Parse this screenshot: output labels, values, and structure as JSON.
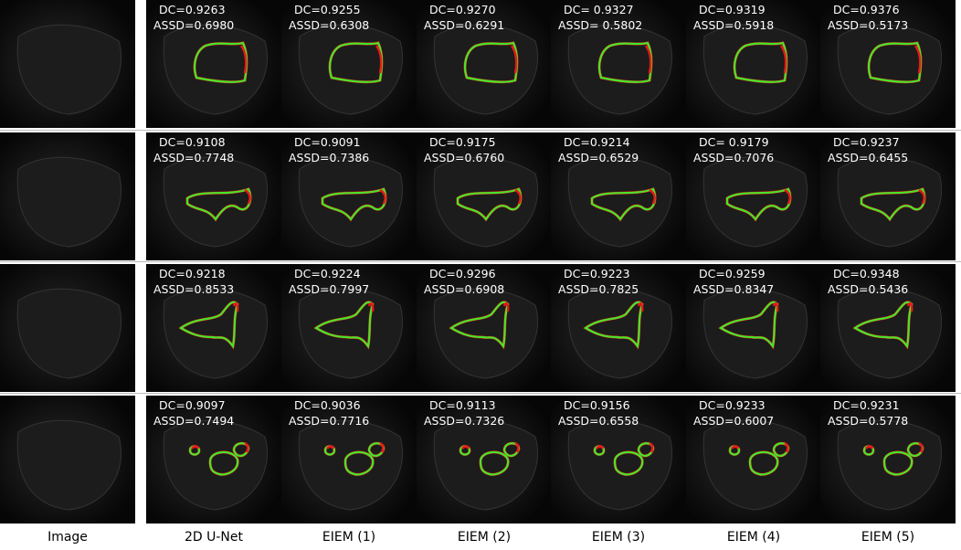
{
  "columns": [
    "Image",
    "2D U-Net",
    "EIEM (1)",
    "EIEM (2)",
    "EIEM (3)",
    "EIEM (4)",
    "EIEM (5)"
  ],
  "rows": [
    {
      "cells": [
        {
          "dc": "DC=0.9263",
          "assd": "ASSD=0.6980"
        },
        {
          "dc": "DC=0.9255",
          "assd": "ASSD=0.6308"
        },
        {
          "dc": "DC=0.9270",
          "assd": "ASSD=0.6291"
        },
        {
          "dc": "DC= 0.9327",
          "assd": "ASSD= 0.5802"
        },
        {
          "dc": "DC=0.9319",
          "assd": "ASSD=0.5918"
        },
        {
          "dc": "DC=0.9376",
          "assd": "ASSD=0.5173"
        }
      ]
    },
    {
      "cells": [
        {
          "dc": "DC=0.9108",
          "assd": "ASSD=0.7748"
        },
        {
          "dc": "DC=0.9091",
          "assd": "ASSD=0.7386"
        },
        {
          "dc": "DC=0.9175",
          "assd": "ASSD=0.6760"
        },
        {
          "dc": "DC=0.9214",
          "assd": "ASSD=0.6529"
        },
        {
          "dc": "DC= 0.9179",
          "assd": "ASSD=0.7076"
        },
        {
          "dc": "DC=0.9237",
          "assd": "ASSD=0.6455"
        }
      ]
    },
    {
      "cells": [
        {
          "dc": "DC=0.9218",
          "assd": "ASSD=0.8533"
        },
        {
          "dc": "DC=0.9224",
          "assd": "ASSD=0.7997"
        },
        {
          "dc": "DC=0.9296",
          "assd": "ASSD=0.6908"
        },
        {
          "dc": "DC=0.9223",
          "assd": "ASSD=0.7825"
        },
        {
          "dc": "DC=0.9259",
          "assd": "ASSD=0.8347"
        },
        {
          "dc": "DC=0.9348",
          "assd": "ASSD=0.5436"
        }
      ]
    },
    {
      "cells": [
        {
          "dc": "DC=0.9097",
          "assd": "ASSD=0.7494"
        },
        {
          "dc": "DC=0.9036",
          "assd": "ASSD=0.7716"
        },
        {
          "dc": "DC=0.9113",
          "assd": "ASSD=0.7326"
        },
        {
          "dc": "DC=0.9156",
          "assd": "ASSD=0.6558"
        },
        {
          "dc": "DC=0.9233",
          "assd": "ASSD=0.6007"
        },
        {
          "dc": "DC=0.9231",
          "assd": "ASSD=0.5778"
        }
      ]
    }
  ]
}
